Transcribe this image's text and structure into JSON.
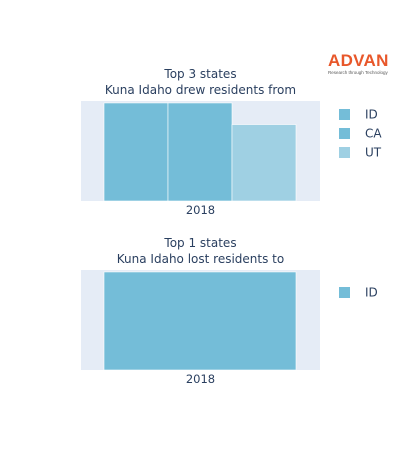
{
  "logo": {
    "name": "ADVAN",
    "tagline": "Research through Technology",
    "color": "#e8572a"
  },
  "chart_data": [
    {
      "type": "bar",
      "title": "Top 3 states",
      "subtitle": "Kuna Idaho drew residents from",
      "categories": [
        "2018"
      ],
      "series": [
        {
          "name": "ID",
          "values": [
            1.0
          ],
          "color": "#74bdd8"
        },
        {
          "name": "CA",
          "values": [
            1.0
          ],
          "color": "#74bdd8"
        },
        {
          "name": "UT",
          "values": [
            0.78
          ],
          "color": "#9fd0e3"
        }
      ],
      "ylim": [
        0,
        1.02
      ],
      "grid": false,
      "legend_position": "right"
    },
    {
      "type": "bar",
      "title": "Top 1 states",
      "subtitle": "Kuna Idaho lost residents to",
      "categories": [
        "2018"
      ],
      "series": [
        {
          "name": "ID",
          "values": [
            1.0
          ],
          "color": "#74bdd8"
        }
      ],
      "ylim": [
        0,
        1.02
      ],
      "grid": false,
      "legend_position": "right"
    }
  ]
}
